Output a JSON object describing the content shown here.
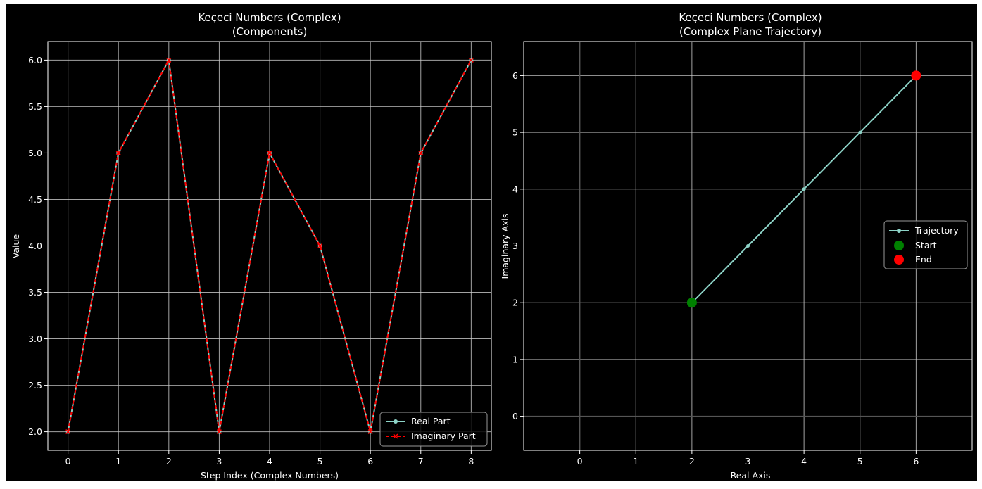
{
  "colors": {
    "background": "#000000",
    "frame": "#ffffff",
    "text": "#ffffff",
    "grid": "#cccccc",
    "zero_line": "#555555",
    "real_part": "#8dd3c7",
    "imaginary_part": "#ff0000",
    "start_marker": "#008000",
    "end_marker": "#ff0000"
  },
  "chart_data": [
    {
      "type": "line",
      "title": "Keçeci Numbers (Complex)",
      "subtitle": "(Components)",
      "xlabel": "Step Index (Complex Numbers)",
      "ylabel": "Value",
      "xlim": [
        -0.4,
        8.4
      ],
      "ylim": [
        1.8,
        6.2
      ],
      "xticks": [
        0,
        1,
        2,
        3,
        4,
        5,
        6,
        7,
        8
      ],
      "yticks": [
        2.0,
        2.5,
        3.0,
        3.5,
        4.0,
        4.5,
        5.0,
        5.5,
        6.0
      ],
      "ytick_labels": [
        "2.0",
        "2.5",
        "3.0",
        "3.5",
        "4.0",
        "4.5",
        "5.0",
        "5.5",
        "6.0"
      ],
      "grid": true,
      "legend_position": "lower-right",
      "x": [
        0,
        1,
        2,
        3,
        4,
        5,
        6,
        7,
        8
      ],
      "series": [
        {
          "name": "Real Part",
          "values": [
            2,
            5,
            6,
            2,
            5,
            4,
            2,
            5,
            6
          ],
          "color": "#8dd3c7",
          "style": "solid",
          "marker": "dot"
        },
        {
          "name": "Imaginary Part",
          "values": [
            2,
            5,
            6,
            2,
            5,
            4,
            2,
            5,
            6
          ],
          "color": "#ff0000",
          "style": "dashed",
          "marker": "x"
        }
      ]
    },
    {
      "type": "line",
      "title": "Keçeci Numbers (Complex)",
      "subtitle": "(Complex Plane Trajectory)",
      "xlabel": "Real Axis",
      "ylabel": "Imaginary Axis",
      "xlim": [
        -1,
        7
      ],
      "ylim": [
        -0.6,
        6.6
      ],
      "xticks": [
        0,
        1,
        2,
        3,
        4,
        5,
        6
      ],
      "yticks": [
        0,
        1,
        2,
        3,
        4,
        5,
        6
      ],
      "grid": true,
      "zero_lines": true,
      "legend_position": "center-right",
      "series": [
        {
          "name": "Trajectory",
          "x": [
            2,
            3,
            4,
            5,
            6
          ],
          "y": [
            2,
            3,
            4,
            5,
            6
          ],
          "color": "#8dd3c7",
          "marker": "dot"
        }
      ],
      "points": [
        {
          "name": "Start",
          "x": 2,
          "y": 2,
          "color": "#008000"
        },
        {
          "name": "End",
          "x": 6,
          "y": 6,
          "color": "#ff0000"
        }
      ]
    }
  ]
}
